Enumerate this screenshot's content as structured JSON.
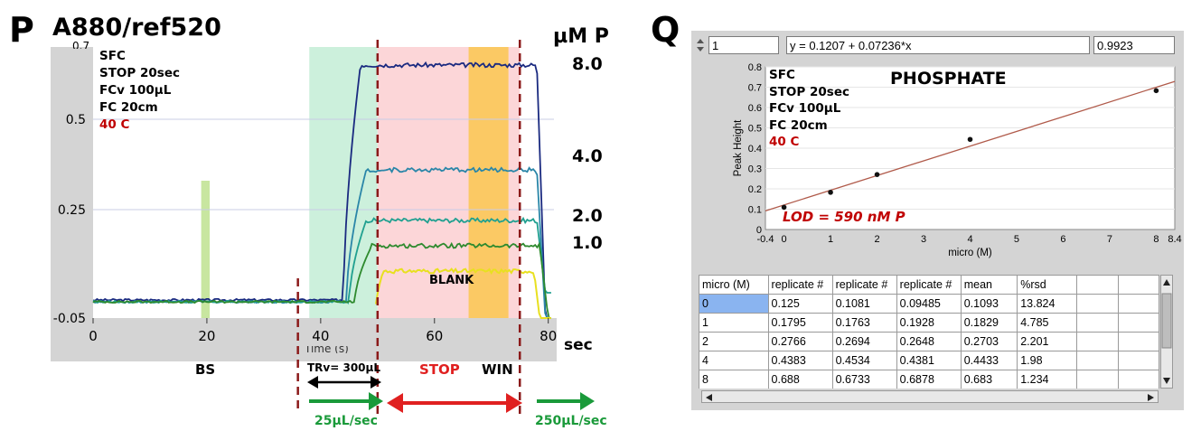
{
  "panel_p": {
    "letter": "P",
    "title": "A880/ref520",
    "unit_label": "µM P",
    "conc_labels": [
      "8.0",
      "4.0",
      "2.0",
      "1.0"
    ],
    "info_lines": [
      "SFC",
      "STOP 20sec",
      "FCv 100µL",
      "FC 20cm"
    ],
    "temp_line": "40 C",
    "ytick_top": "0.7",
    "sec_label": "sec",
    "blank_label": "BLANK",
    "bs_label": "BS",
    "trv_label": "TRv= 300µL",
    "stop_label": "STOP",
    "win_label": "WIN",
    "flow1_label": "25µL/sec",
    "flow2_label": "250µL/sec",
    "xaxis_partial": "Time (s)",
    "colors": {
      "stop": "#e02020",
      "flow": "#1a9a3a",
      "divider": "#8b1a1a"
    }
  },
  "panel_q": {
    "letter": "Q",
    "index_value": "1",
    "equation": "y = 0.1207 + 0.07236*x",
    "r_value": "0.9923",
    "title": "PHOSPHATE",
    "info_lines": [
      "SFC",
      "STOP 20sec",
      "FCv 100µL",
      "FC 20cm"
    ],
    "temp_line": "40 C",
    "lod": "LOD = 590 nM P",
    "table": {
      "headers": [
        "micro (M)",
        "replicate #",
        "replicate #",
        "replicate #",
        "mean",
        "%rsd",
        "",
        ""
      ],
      "rows": [
        [
          "0",
          "0.125",
          "0.1081",
          "0.09485",
          "0.1093",
          "13.824",
          "",
          ""
        ],
        [
          "1",
          "0.1795",
          "0.1763",
          "0.1928",
          "0.1829",
          "4.785",
          "",
          ""
        ],
        [
          "2",
          "0.2766",
          "0.2694",
          "0.2648",
          "0.2703",
          "2.201",
          "",
          ""
        ],
        [
          "4",
          "0.4383",
          "0.4534",
          "0.4381",
          "0.4433",
          "1.98",
          "",
          ""
        ],
        [
          "8",
          "0.688",
          "0.6733",
          "0.6878",
          "0.683",
          "1.234",
          "",
          ""
        ]
      ]
    }
  },
  "chart_data": [
    {
      "type": "line",
      "title": "A880/ref520",
      "xlabel": "",
      "ylabel": "",
      "xlim": [
        0,
        81
      ],
      "ylim": [
        -0.05,
        0.7
      ],
      "xticks": [
        0,
        20,
        40,
        60,
        80
      ],
      "yticks": [
        -0.05,
        0.25,
        0.5
      ],
      "ytick_labels": [
        "-0.05",
        "0.25",
        "0.5"
      ],
      "regions": [
        {
          "name": "BS",
          "x": [
            19,
            20.5
          ],
          "y_top": 0.33,
          "color": "#c8e6a0"
        },
        {
          "name": "TRv",
          "x": [
            38,
            50
          ],
          "color": "#ccf0dc"
        },
        {
          "name": "STOP",
          "x": [
            50,
            75
          ],
          "color": "#fcd6d8"
        },
        {
          "name": "WIN",
          "x": [
            66,
            73
          ],
          "color": "#fbc964"
        }
      ],
      "dividers_x": [
        36,
        50,
        75
      ],
      "series": [
        {
          "conc": "8.0",
          "color": "#1a2a80",
          "baseline": 0.0,
          "plateau": 0.65,
          "rise_x": [
            44,
            47
          ],
          "fall_x": [
            78,
            79.5
          ],
          "end": -0.05
        },
        {
          "conc": "4.0",
          "color": "#2a86a8",
          "baseline": -0.005,
          "plateau": 0.36,
          "rise_x": [
            44.5,
            48
          ],
          "fall_x": [
            78,
            79.5
          ],
          "end": -0.05
        },
        {
          "conc": "2.0",
          "color": "#20a090",
          "baseline": -0.005,
          "plateau": 0.22,
          "rise_x": [
            45,
            48
          ],
          "fall_x": [
            78,
            79.5
          ],
          "end": 0.02
        },
        {
          "conc": "1.0",
          "color": "#2e8a2e",
          "baseline": -0.005,
          "plateau": 0.15,
          "rise_x": [
            46,
            49
          ],
          "fall_x": [
            78.5,
            80
          ],
          "end": -0.05
        },
        {
          "conc": "BLANK",
          "color": "#e8e020",
          "baseline": -0.05,
          "plateau": 0.08,
          "rise_x": [
            49.5,
            51
          ],
          "fall_x": [
            77.5,
            78.5
          ],
          "end": -0.05
        }
      ]
    },
    {
      "type": "scatter",
      "title": "PHOSPHATE",
      "xlabel": "micro (M)",
      "ylabel": "Peak Height",
      "xlim": [
        -0.4,
        8.4
      ],
      "ylim": [
        0,
        0.8
      ],
      "xticks": [
        -0.4,
        0,
        1,
        2,
        3,
        4,
        5,
        6,
        7,
        8,
        8.4
      ],
      "yticks": [
        0,
        0.1,
        0.2,
        0.3,
        0.4,
        0.5,
        0.6,
        0.7,
        0.8
      ],
      "points": {
        "x": [
          0,
          1,
          2,
          4,
          8
        ],
        "y": [
          0.1093,
          0.1829,
          0.2703,
          0.4433,
          0.683
        ]
      },
      "fit": {
        "intercept": 0.1207,
        "slope": 0.07236,
        "color": "#b05a4a"
      }
    }
  ]
}
